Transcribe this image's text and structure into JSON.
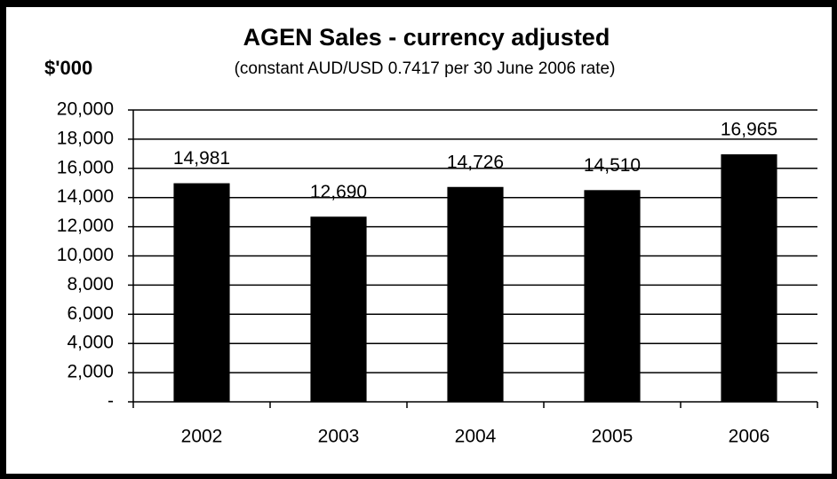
{
  "chart_data": {
    "type": "bar",
    "title": "AGEN Sales - currency adjusted",
    "subtitle": "(constant AUD/USD 0.7417 per 30 June 2006 rate)",
    "y_label": "$'000",
    "categories": [
      "2002",
      "2003",
      "2004",
      "2005",
      "2006"
    ],
    "values": [
      14981,
      12690,
      14726,
      14510,
      16965
    ],
    "value_labels": [
      "14,981",
      "12,690",
      "14,726",
      "14,510",
      "16,965"
    ],
    "color": "#000000",
    "ylim": [
      0,
      20000
    ],
    "yticks": [
      {
        "value": 0,
        "label": "-"
      },
      {
        "value": 2000,
        "label": "2,000"
      },
      {
        "value": 4000,
        "label": "4,000"
      },
      {
        "value": 6000,
        "label": "6,000"
      },
      {
        "value": 8000,
        "label": "8,000"
      },
      {
        "value": 10000,
        "label": "10,000"
      },
      {
        "value": 12000,
        "label": "12,000"
      },
      {
        "value": 14000,
        "label": "14,000"
      },
      {
        "value": 16000,
        "label": "16,000"
      },
      {
        "value": 18000,
        "label": "18,000"
      },
      {
        "value": 20000,
        "label": "20,000"
      }
    ],
    "grid": true
  }
}
